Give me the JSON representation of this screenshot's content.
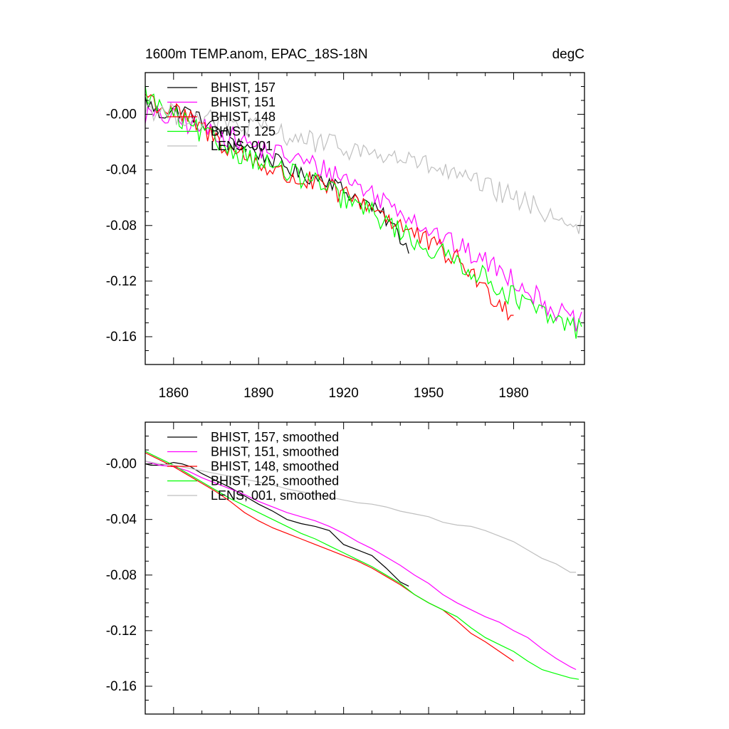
{
  "header": {
    "left_title": "1600m TEMP.anom, EPAC_18S-18N",
    "right_title": "degC"
  },
  "colors": {
    "157": "#000000",
    "151": "#ff00ff",
    "148": "#ff0000",
    "125": "#00ff00",
    "001": "#bfbfbf"
  },
  "chart_data": [
    {
      "type": "line",
      "panel": "top",
      "xlim": [
        1850,
        2005
      ],
      "ylim": [
        -0.18,
        0.03
      ],
      "xticks": [
        1860,
        1890,
        1920,
        1950,
        1980
      ],
      "xtick_labels": [
        "1860",
        "1890",
        "1920",
        "1950",
        "1980"
      ],
      "yticks": [
        0.0,
        -0.04,
        -0.08,
        -0.12,
        -0.16
      ],
      "ytick_labels": [
        "-0.00",
        "-0.04",
        "-0.08",
        "-0.12",
        "-0.16"
      ],
      "legend_position": "top-left",
      "series": [
        {
          "name": "BHIST, 157",
          "color": "#000000",
          "anchors": [
            [
              1850,
              0.01
            ],
            [
              1855,
              0.0
            ],
            [
              1860,
              0.003
            ],
            [
              1865,
              0.002
            ],
            [
              1870,
              -0.005
            ],
            [
              1875,
              -0.01
            ],
            [
              1880,
              -0.016
            ],
            [
              1885,
              -0.022
            ],
            [
              1890,
              -0.028
            ],
            [
              1895,
              -0.033
            ],
            [
              1900,
              -0.038
            ],
            [
              1905,
              -0.044
            ],
            [
              1910,
              -0.045
            ],
            [
              1915,
              -0.047
            ],
            [
              1920,
              -0.055
            ],
            [
              1925,
              -0.06
            ],
            [
              1930,
              -0.067
            ],
            [
              1935,
              -0.075
            ],
            [
              1940,
              -0.088
            ],
            [
              1943,
              -0.097
            ]
          ],
          "noise": 0.006
        },
        {
          "name": "BHIST, 151",
          "color": "#ff00ff",
          "anchors": [
            [
              1850,
              0.0
            ],
            [
              1855,
              -0.002
            ],
            [
              1860,
              -0.003
            ],
            [
              1870,
              -0.01
            ],
            [
              1880,
              -0.016
            ],
            [
              1890,
              -0.024
            ],
            [
              1900,
              -0.03
            ],
            [
              1910,
              -0.037
            ],
            [
              1920,
              -0.045
            ],
            [
              1930,
              -0.057
            ],
            [
              1940,
              -0.068
            ],
            [
              1950,
              -0.083
            ],
            [
              1960,
              -0.095
            ],
            [
              1970,
              -0.106
            ],
            [
              1980,
              -0.118
            ],
            [
              1990,
              -0.134
            ],
            [
              2000,
              -0.148
            ],
            [
              2004,
              -0.15
            ]
          ],
          "noise": 0.008
        },
        {
          "name": "BHIST, 148",
          "color": "#ff0000",
          "anchors": [
            [
              1850,
              0.015
            ],
            [
              1855,
              0.006
            ],
            [
              1860,
              0.002
            ],
            [
              1865,
              -0.004
            ],
            [
              1870,
              -0.01
            ],
            [
              1880,
              -0.025
            ],
            [
              1890,
              -0.035
            ],
            [
              1900,
              -0.045
            ],
            [
              1910,
              -0.05
            ],
            [
              1920,
              -0.058
            ],
            [
              1930,
              -0.066
            ],
            [
              1940,
              -0.08
            ],
            [
              1950,
              -0.093
            ],
            [
              1960,
              -0.105
            ],
            [
              1965,
              -0.113
            ],
            [
              1970,
              -0.128
            ],
            [
              1975,
              -0.133
            ],
            [
              1980,
              -0.145
            ]
          ],
          "noise": 0.008
        },
        {
          "name": "BHIST, 125",
          "color": "#00ff00",
          "anchors": [
            [
              1850,
              0.015
            ],
            [
              1855,
              0.005
            ],
            [
              1860,
              -0.002
            ],
            [
              1870,
              -0.014
            ],
            [
              1880,
              -0.025
            ],
            [
              1890,
              -0.033
            ],
            [
              1900,
              -0.042
            ],
            [
              1910,
              -0.049
            ],
            [
              1920,
              -0.061
            ],
            [
              1930,
              -0.071
            ],
            [
              1940,
              -0.084
            ],
            [
              1950,
              -0.097
            ],
            [
              1960,
              -0.105
            ],
            [
              1970,
              -0.118
            ],
            [
              1980,
              -0.131
            ],
            [
              1990,
              -0.144
            ],
            [
              2000,
              -0.152
            ],
            [
              2004,
              -0.155
            ]
          ],
          "noise": 0.008
        },
        {
          "name": "LENS, 001",
          "color": "#bfbfbf",
          "anchors": [
            [
              1850,
              0.005
            ],
            [
              1860,
              0.0
            ],
            [
              1870,
              -0.003
            ],
            [
              1880,
              -0.008
            ],
            [
              1890,
              -0.01
            ],
            [
              1900,
              -0.015
            ],
            [
              1910,
              -0.02
            ],
            [
              1920,
              -0.024
            ],
            [
              1930,
              -0.028
            ],
            [
              1940,
              -0.032
            ],
            [
              1950,
              -0.037
            ],
            [
              1960,
              -0.045
            ],
            [
              1970,
              -0.052
            ],
            [
              1980,
              -0.06
            ],
            [
              1990,
              -0.069
            ],
            [
              2000,
              -0.078
            ],
            [
              2004,
              -0.08
            ]
          ],
          "noise": 0.008
        }
      ]
    },
    {
      "type": "line",
      "panel": "bottom",
      "xlim": [
        1850,
        2005
      ],
      "ylim": [
        -0.18,
        0.03
      ],
      "xticks": [
        1860,
        1890,
        1920,
        1950,
        1980
      ],
      "xtick_labels": [],
      "yticks": [
        0.0,
        -0.04,
        -0.08,
        -0.12,
        -0.16
      ],
      "ytick_labels": [
        "-0.00",
        "-0.04",
        "-0.08",
        "-0.12",
        "-0.16"
      ],
      "legend_position": "top-left",
      "series": [
        {
          "name": "BHIST, 157, smoothed",
          "color": "#000000",
          "points": [
            [
              1850,
              0.0
            ],
            [
              1852,
              -0.001
            ],
            [
              1855,
              -0.001
            ],
            [
              1858,
              0.0
            ],
            [
              1860,
              0.001
            ],
            [
              1863,
              0.0
            ],
            [
              1866,
              -0.002
            ],
            [
              1870,
              -0.007
            ],
            [
              1875,
              -0.012
            ],
            [
              1880,
              -0.017
            ],
            [
              1885,
              -0.023
            ],
            [
              1890,
              -0.029
            ],
            [
              1895,
              -0.034
            ],
            [
              1900,
              -0.04
            ],
            [
              1905,
              -0.043
            ],
            [
              1910,
              -0.045
            ],
            [
              1915,
              -0.048
            ],
            [
              1920,
              -0.058
            ],
            [
              1925,
              -0.062
            ],
            [
              1930,
              -0.066
            ],
            [
              1935,
              -0.075
            ],
            [
              1940,
              -0.085
            ],
            [
              1943,
              -0.088
            ]
          ]
        },
        {
          "name": "BHIST, 151, smoothed",
          "color": "#ff00ff",
          "points": [
            [
              1850,
              0.002
            ],
            [
              1855,
              -0.001
            ],
            [
              1860,
              -0.002
            ],
            [
              1865,
              -0.005
            ],
            [
              1870,
              -0.01
            ],
            [
              1875,
              -0.014
            ],
            [
              1880,
              -0.018
            ],
            [
              1885,
              -0.022
            ],
            [
              1890,
              -0.027
            ],
            [
              1895,
              -0.031
            ],
            [
              1900,
              -0.035
            ],
            [
              1905,
              -0.038
            ],
            [
              1910,
              -0.041
            ],
            [
              1915,
              -0.045
            ],
            [
              1920,
              -0.05
            ],
            [
              1925,
              -0.056
            ],
            [
              1930,
              -0.061
            ],
            [
              1935,
              -0.067
            ],
            [
              1940,
              -0.073
            ],
            [
              1945,
              -0.08
            ],
            [
              1950,
              -0.086
            ],
            [
              1955,
              -0.094
            ],
            [
              1960,
              -0.1
            ],
            [
              1965,
              -0.105
            ],
            [
              1970,
              -0.11
            ],
            [
              1975,
              -0.114
            ],
            [
              1980,
              -0.12
            ],
            [
              1985,
              -0.125
            ],
            [
              1990,
              -0.133
            ],
            [
              1995,
              -0.14
            ],
            [
              2000,
              -0.146
            ],
            [
              2002,
              -0.148
            ]
          ]
        },
        {
          "name": "BHIST, 148, smoothed",
          "color": "#ff0000",
          "points": [
            [
              1850,
              0.008
            ],
            [
              1853,
              0.005
            ],
            [
              1856,
              0.002
            ],
            [
              1860,
              -0.002
            ],
            [
              1865,
              -0.008
            ],
            [
              1870,
              -0.014
            ],
            [
              1875,
              -0.02
            ],
            [
              1880,
              -0.027
            ],
            [
              1885,
              -0.035
            ],
            [
              1890,
              -0.041
            ],
            [
              1895,
              -0.046
            ],
            [
              1900,
              -0.05
            ],
            [
              1905,
              -0.054
            ],
            [
              1910,
              -0.058
            ],
            [
              1915,
              -0.062
            ],
            [
              1920,
              -0.066
            ],
            [
              1925,
              -0.07
            ],
            [
              1930,
              -0.075
            ],
            [
              1935,
              -0.081
            ],
            [
              1940,
              -0.087
            ],
            [
              1945,
              -0.094
            ],
            [
              1950,
              -0.1
            ],
            [
              1955,
              -0.105
            ],
            [
              1960,
              -0.113
            ],
            [
              1965,
              -0.122
            ],
            [
              1970,
              -0.128
            ],
            [
              1975,
              -0.135
            ],
            [
              1980,
              -0.142
            ]
          ]
        },
        {
          "name": "BHIST, 125, smoothed",
          "color": "#00ff00",
          "points": [
            [
              1850,
              0.009
            ],
            [
              1853,
              0.006
            ],
            [
              1856,
              0.003
            ],
            [
              1860,
              -0.001
            ],
            [
              1865,
              -0.007
            ],
            [
              1870,
              -0.013
            ],
            [
              1875,
              -0.019
            ],
            [
              1880,
              -0.025
            ],
            [
              1885,
              -0.03
            ],
            [
              1890,
              -0.035
            ],
            [
              1895,
              -0.04
            ],
            [
              1900,
              -0.045
            ],
            [
              1905,
              -0.05
            ],
            [
              1910,
              -0.054
            ],
            [
              1915,
              -0.059
            ],
            [
              1920,
              -0.064
            ],
            [
              1925,
              -0.069
            ],
            [
              1930,
              -0.074
            ],
            [
              1935,
              -0.08
            ],
            [
              1940,
              -0.086
            ],
            [
              1945,
              -0.094
            ],
            [
              1950,
              -0.1
            ],
            [
              1955,
              -0.105
            ],
            [
              1960,
              -0.11
            ],
            [
              1965,
              -0.118
            ],
            [
              1970,
              -0.125
            ],
            [
              1975,
              -0.13
            ],
            [
              1980,
              -0.135
            ],
            [
              1985,
              -0.142
            ],
            [
              1990,
              -0.148
            ],
            [
              1995,
              -0.151
            ],
            [
              2000,
              -0.154
            ],
            [
              2003,
              -0.155
            ]
          ]
        },
        {
          "name": "LENS, 001, smoothed",
          "color": "#bfbfbf",
          "points": [
            [
              1850,
              0.002
            ],
            [
              1855,
              0.0
            ],
            [
              1860,
              -0.001
            ],
            [
              1865,
              -0.003
            ],
            [
              1870,
              -0.005
            ],
            [
              1875,
              -0.007
            ],
            [
              1880,
              -0.009
            ],
            [
              1885,
              -0.011
            ],
            [
              1890,
              -0.013
            ],
            [
              1895,
              -0.015
            ],
            [
              1900,
              -0.018
            ],
            [
              1905,
              -0.02
            ],
            [
              1910,
              -0.022
            ],
            [
              1915,
              -0.024
            ],
            [
              1920,
              -0.026
            ],
            [
              1925,
              -0.028
            ],
            [
              1930,
              -0.029
            ],
            [
              1935,
              -0.031
            ],
            [
              1940,
              -0.034
            ],
            [
              1945,
              -0.036
            ],
            [
              1950,
              -0.038
            ],
            [
              1955,
              -0.042
            ],
            [
              1960,
              -0.044
            ],
            [
              1965,
              -0.045
            ],
            [
              1970,
              -0.048
            ],
            [
              1975,
              -0.052
            ],
            [
              1980,
              -0.056
            ],
            [
              1985,
              -0.062
            ],
            [
              1990,
              -0.068
            ],
            [
              1995,
              -0.072
            ],
            [
              2000,
              -0.078
            ],
            [
              2002,
              -0.078
            ]
          ]
        }
      ]
    }
  ]
}
